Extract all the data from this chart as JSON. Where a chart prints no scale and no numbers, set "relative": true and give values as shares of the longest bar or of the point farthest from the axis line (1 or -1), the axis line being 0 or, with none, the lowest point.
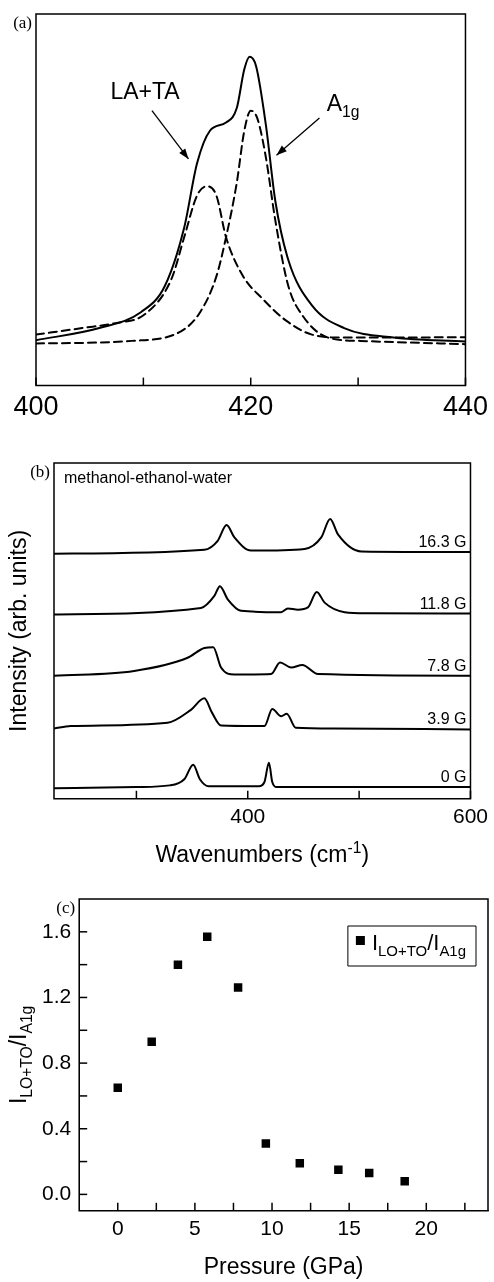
{
  "chart_data": [
    {
      "type": "line",
      "title": "(a)",
      "relative": true,
      "xlim": [
        400,
        440
      ],
      "xticks": [
        400,
        {
          "value": 410,
          "label": null
        },
        420,
        {
          "value": 430,
          "label": null
        },
        440
      ],
      "series": [
        {
          "color": "#000000",
          "line_style": "solid",
          "x": [
            400,
            405.9,
            409.8,
            412.0,
            413.8,
            415.0,
            416.2,
            417.7,
            418.7,
            419.4,
            419.9,
            420.5,
            421.4,
            422.3,
            423.5,
            425.7,
            428.7,
            433.3,
            440
          ],
          "values": [
            0.138,
            0.175,
            0.224,
            0.303,
            0.48,
            0.676,
            0.775,
            0.8,
            0.844,
            0.962,
            1.0,
            0.971,
            0.795,
            0.559,
            0.382,
            0.244,
            0.175,
            0.146,
            0.134
          ]
        },
        {
          "color": "#000000",
          "line_style": "dashed",
          "x": [
            400,
            404.3,
            407.4,
            410.1,
            412.6,
            413.8,
            415.0,
            415.9,
            416.8,
            417.7,
            419.3,
            421.1,
            423.2,
            425.7,
            428.7,
            440
          ],
          "values": [
            0.155,
            0.175,
            0.19,
            0.216,
            0.323,
            0.451,
            0.578,
            0.606,
            0.578,
            0.451,
            0.332,
            0.264,
            0.2,
            0.155,
            0.146,
            0.147
          ]
        },
        {
          "color": "#000000",
          "line_style": "dashed",
          "x": [
            400,
            408.9,
            413.5,
            415.3,
            416.8,
            417.7,
            418.7,
            419.4,
            420.0,
            420.6,
            421.4,
            422.3,
            423.5,
            424.8,
            427.2,
            430.2,
            440
          ],
          "values": [
            0.128,
            0.136,
            0.165,
            0.224,
            0.332,
            0.451,
            0.617,
            0.775,
            0.836,
            0.814,
            0.696,
            0.5,
            0.303,
            0.214,
            0.146,
            0.136,
            0.126
          ]
        }
      ],
      "annotations": [
        "LA+TA",
        "A$_{1g}$"
      ]
    },
    {
      "type": "line",
      "title": "(b)",
      "relative": true,
      "xlabel": "Wavenumbers (cm$^{-1}$)",
      "ylabel": "Intensity (arb. units)",
      "xlim": [
        226,
        600
      ],
      "xticks": [
        {
          "value": 300,
          "label": null
        },
        400,
        {
          "value": 500,
          "label": null
        },
        600
      ],
      "series": [
        {
          "name": "0 G",
          "color": "#000000",
          "x": [
            226,
            300,
            330,
            343,
            351,
            357,
            365,
            410,
            415,
            419,
            422,
            426,
            600
          ],
          "values": [
            0.038,
            0.042,
            0.048,
            0.07,
            0.122,
            0.07,
            0.045,
            0.045,
            0.06,
            0.129,
            0.06,
            0.042,
            0.042
          ]
        },
        {
          "name": "3.9 G",
          "color": "#000000",
          "x": [
            226,
            241,
            328,
            349,
            361,
            368,
            376,
            415,
            422,
            430,
            435,
            443,
            477,
            600
          ],
          "values": [
            0.251,
            0.26,
            0.272,
            0.318,
            0.359,
            0.307,
            0.262,
            0.26,
            0.321,
            0.295,
            0.304,
            0.254,
            0.251,
            0.248
          ]
        },
        {
          "name": "7.8 G",
          "color": "#000000",
          "x": [
            226,
            298,
            346,
            361,
            369,
            376,
            388,
            421,
            429,
            439,
            449,
            463,
            600
          ],
          "values": [
            0.44,
            0.457,
            0.504,
            0.539,
            0.542,
            0.469,
            0.444,
            0.446,
            0.487,
            0.469,
            0.478,
            0.446,
            0.44
          ]
        },
        {
          "name": "11.8 G",
          "color": "#000000",
          "x": [
            226,
            358,
            370,
            375,
            382,
            394,
            430,
            436,
            445,
            454,
            462,
            469,
            487,
            508,
            600
          ],
          "values": [
            0.659,
            0.682,
            0.725,
            0.76,
            0.713,
            0.672,
            0.667,
            0.68,
            0.676,
            0.684,
            0.739,
            0.701,
            0.667,
            0.663,
            0.662
          ]
        },
        {
          "name": "16.3 G",
          "color": "#000000",
          "x": [
            226,
            361,
            373,
            381,
            388,
            403,
            451,
            466,
            474,
            481,
            502,
            600
          ],
          "values": [
            0.876,
            0.89,
            0.922,
            0.978,
            0.934,
            0.887,
            0.893,
            0.934,
            1.0,
            0.945,
            0.884,
            0.882
          ]
        }
      ],
      "annotations": [
        "methanol-ethanol-water"
      ]
    },
    {
      "type": "scatter",
      "title": "(c)",
      "xlabel": "Pressure (GPa)",
      "ylabel": "I$_{LO+TO}$/I$_{A1g}$",
      "xlim": [
        -2.5,
        24
      ],
      "xticks": [
        0,
        {
          "value": 2.5,
          "label": null
        },
        5,
        {
          "value": 7.5,
          "label": null
        },
        10,
        {
          "value": 12.5,
          "label": null
        },
        15,
        {
          "value": 17.5,
          "label": null
        },
        20,
        {
          "value": 22.5,
          "label": null
        }
      ],
      "ylim": [
        -0.1,
        1.8
      ],
      "yticks": [
        {
          "value": 0,
          "label": "0.0"
        },
        {
          "value": 0.2,
          "label": null
        },
        0.4,
        {
          "value": 0.6,
          "label": null
        },
        0.8,
        {
          "value": 1.0,
          "label": null
        },
        1.2,
        {
          "value": 1.4,
          "label": null
        },
        1.6
      ],
      "marker": "square",
      "legend": "top right",
      "series": [
        {
          "name": "I$_{LO+TO}$/I$_{A1g}$",
          "color": "#000000",
          "x": [
            0,
            2.2,
            3.9,
            5.8,
            7.8,
            9.6,
            11.8,
            14.3,
            16.3,
            18.6
          ],
          "values": [
            0.65,
            0.93,
            1.4,
            1.57,
            1.26,
            0.31,
            0.19,
            0.15,
            0.13,
            0.08
          ]
        }
      ]
    }
  ]
}
